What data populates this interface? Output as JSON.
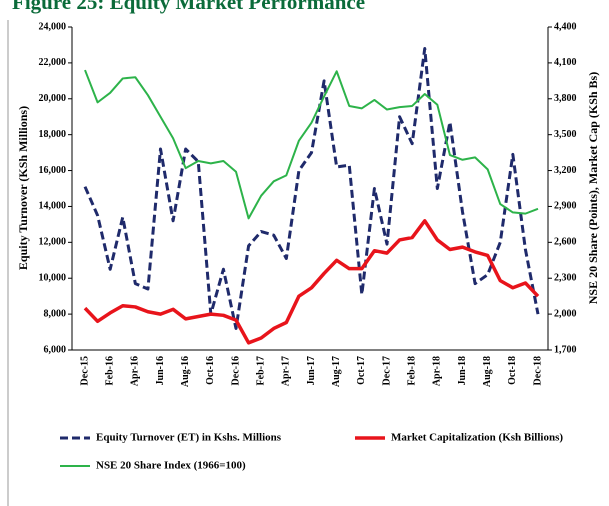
{
  "chart_data": {
    "type": "line",
    "title": "Figure 25: Equity Market Performance",
    "ylabel": "Equity Turnover (KSh Millions)",
    "y2label": "NSE 20 Share (Points), Market Cap (KSh Bs)",
    "categories": [
      "Dec-15",
      null,
      "Feb-16",
      null,
      "Apr-16",
      null,
      "Jun-16",
      null,
      "Aug-16",
      null,
      "Oct-16",
      null,
      "Dec-16",
      null,
      "Feb-17",
      null,
      "Apr-17",
      null,
      "Jun-17",
      null,
      "Aug-17",
      null,
      "Oct-17",
      null,
      "Dec-17",
      null,
      "Feb-18",
      null,
      "Apr-18",
      null,
      "Jun-18",
      null,
      "Aug-18",
      null,
      "Oct-18",
      null,
      "Dec-18"
    ],
    "ylim": [
      6000,
      24000
    ],
    "yticks": [
      {
        "value": 6000,
        "label": "6,000"
      },
      {
        "value": 8000,
        "label": "8,000"
      },
      {
        "value": 10000,
        "label": "10,000"
      },
      {
        "value": 12000,
        "label": "12,000"
      },
      {
        "value": 14000,
        "label": "14,000"
      },
      {
        "value": 16000,
        "label": "16,000"
      },
      {
        "value": 18000,
        "label": "18,000"
      },
      {
        "value": 20000,
        "label": "20,000"
      },
      {
        "value": 22000,
        "label": "22,000"
      },
      {
        "value": 24000,
        "label": "24,000"
      }
    ],
    "y2lim": [
      1700,
      4400
    ],
    "y2ticks": [
      {
        "value": 1700,
        "label": "1,700"
      },
      {
        "value": 2000,
        "label": "2,000"
      },
      {
        "value": 2300,
        "label": "2,300"
      },
      {
        "value": 2600,
        "label": "2,600"
      },
      {
        "value": 2900,
        "label": "2,900"
      },
      {
        "value": 3200,
        "label": "3,200"
      },
      {
        "value": 3500,
        "label": "3,500"
      },
      {
        "value": 3800,
        "label": "3,800"
      },
      {
        "value": 4100,
        "label": "4,100"
      },
      {
        "value": 4400,
        "label": "4,400"
      }
    ],
    "series": [
      {
        "name": "Equity Turnover (ET) in Kshs. Millions",
        "color": "#1f2a6b",
        "dashed": true,
        "values": [
          15100,
          13500,
          10500,
          13400,
          9700,
          9400,
          17200,
          13200,
          17200,
          16500,
          8000,
          10500,
          7200,
          11800,
          12600,
          12400,
          11100,
          16000,
          17000,
          21000,
          16200,
          16300,
          9100,
          15000,
          11900,
          19000,
          17500,
          22800,
          15000,
          18700,
          13700,
          9700,
          10200,
          12000,
          16900,
          11600,
          8000
        ]
      },
      {
        "name": "Market Capitalization (Ksh Billions)",
        "color": "#e8141b",
        "axis": "y2",
        "values": [
          2050,
          1940,
          2010,
          2070,
          2060,
          2020,
          2000,
          2040,
          1960,
          1980,
          2000,
          1990,
          1950,
          1760,
          1800,
          1880,
          1930,
          2150,
          2220,
          2340,
          2450,
          2380,
          2380,
          2530,
          2510,
          2620,
          2640,
          2780,
          2620,
          2540,
          2560,
          2520,
          2490,
          2280,
          2220,
          2260,
          2150
        ]
      },
      {
        "name": "NSE 20 Share Index (1966=100)",
        "color": "#2db34a",
        "axis": "y2",
        "values": [
          4040,
          3770,
          3850,
          3970,
          3980,
          3830,
          3650,
          3470,
          3220,
          3280,
          3260,
          3280,
          3190,
          2800,
          2990,
          3110,
          3160,
          3450,
          3600,
          3820,
          4030,
          3740,
          3720,
          3790,
          3710,
          3730,
          3740,
          3840,
          3750,
          3330,
          3290,
          3310,
          3210,
          2920,
          2850,
          2840,
          2880
        ]
      }
    ]
  }
}
